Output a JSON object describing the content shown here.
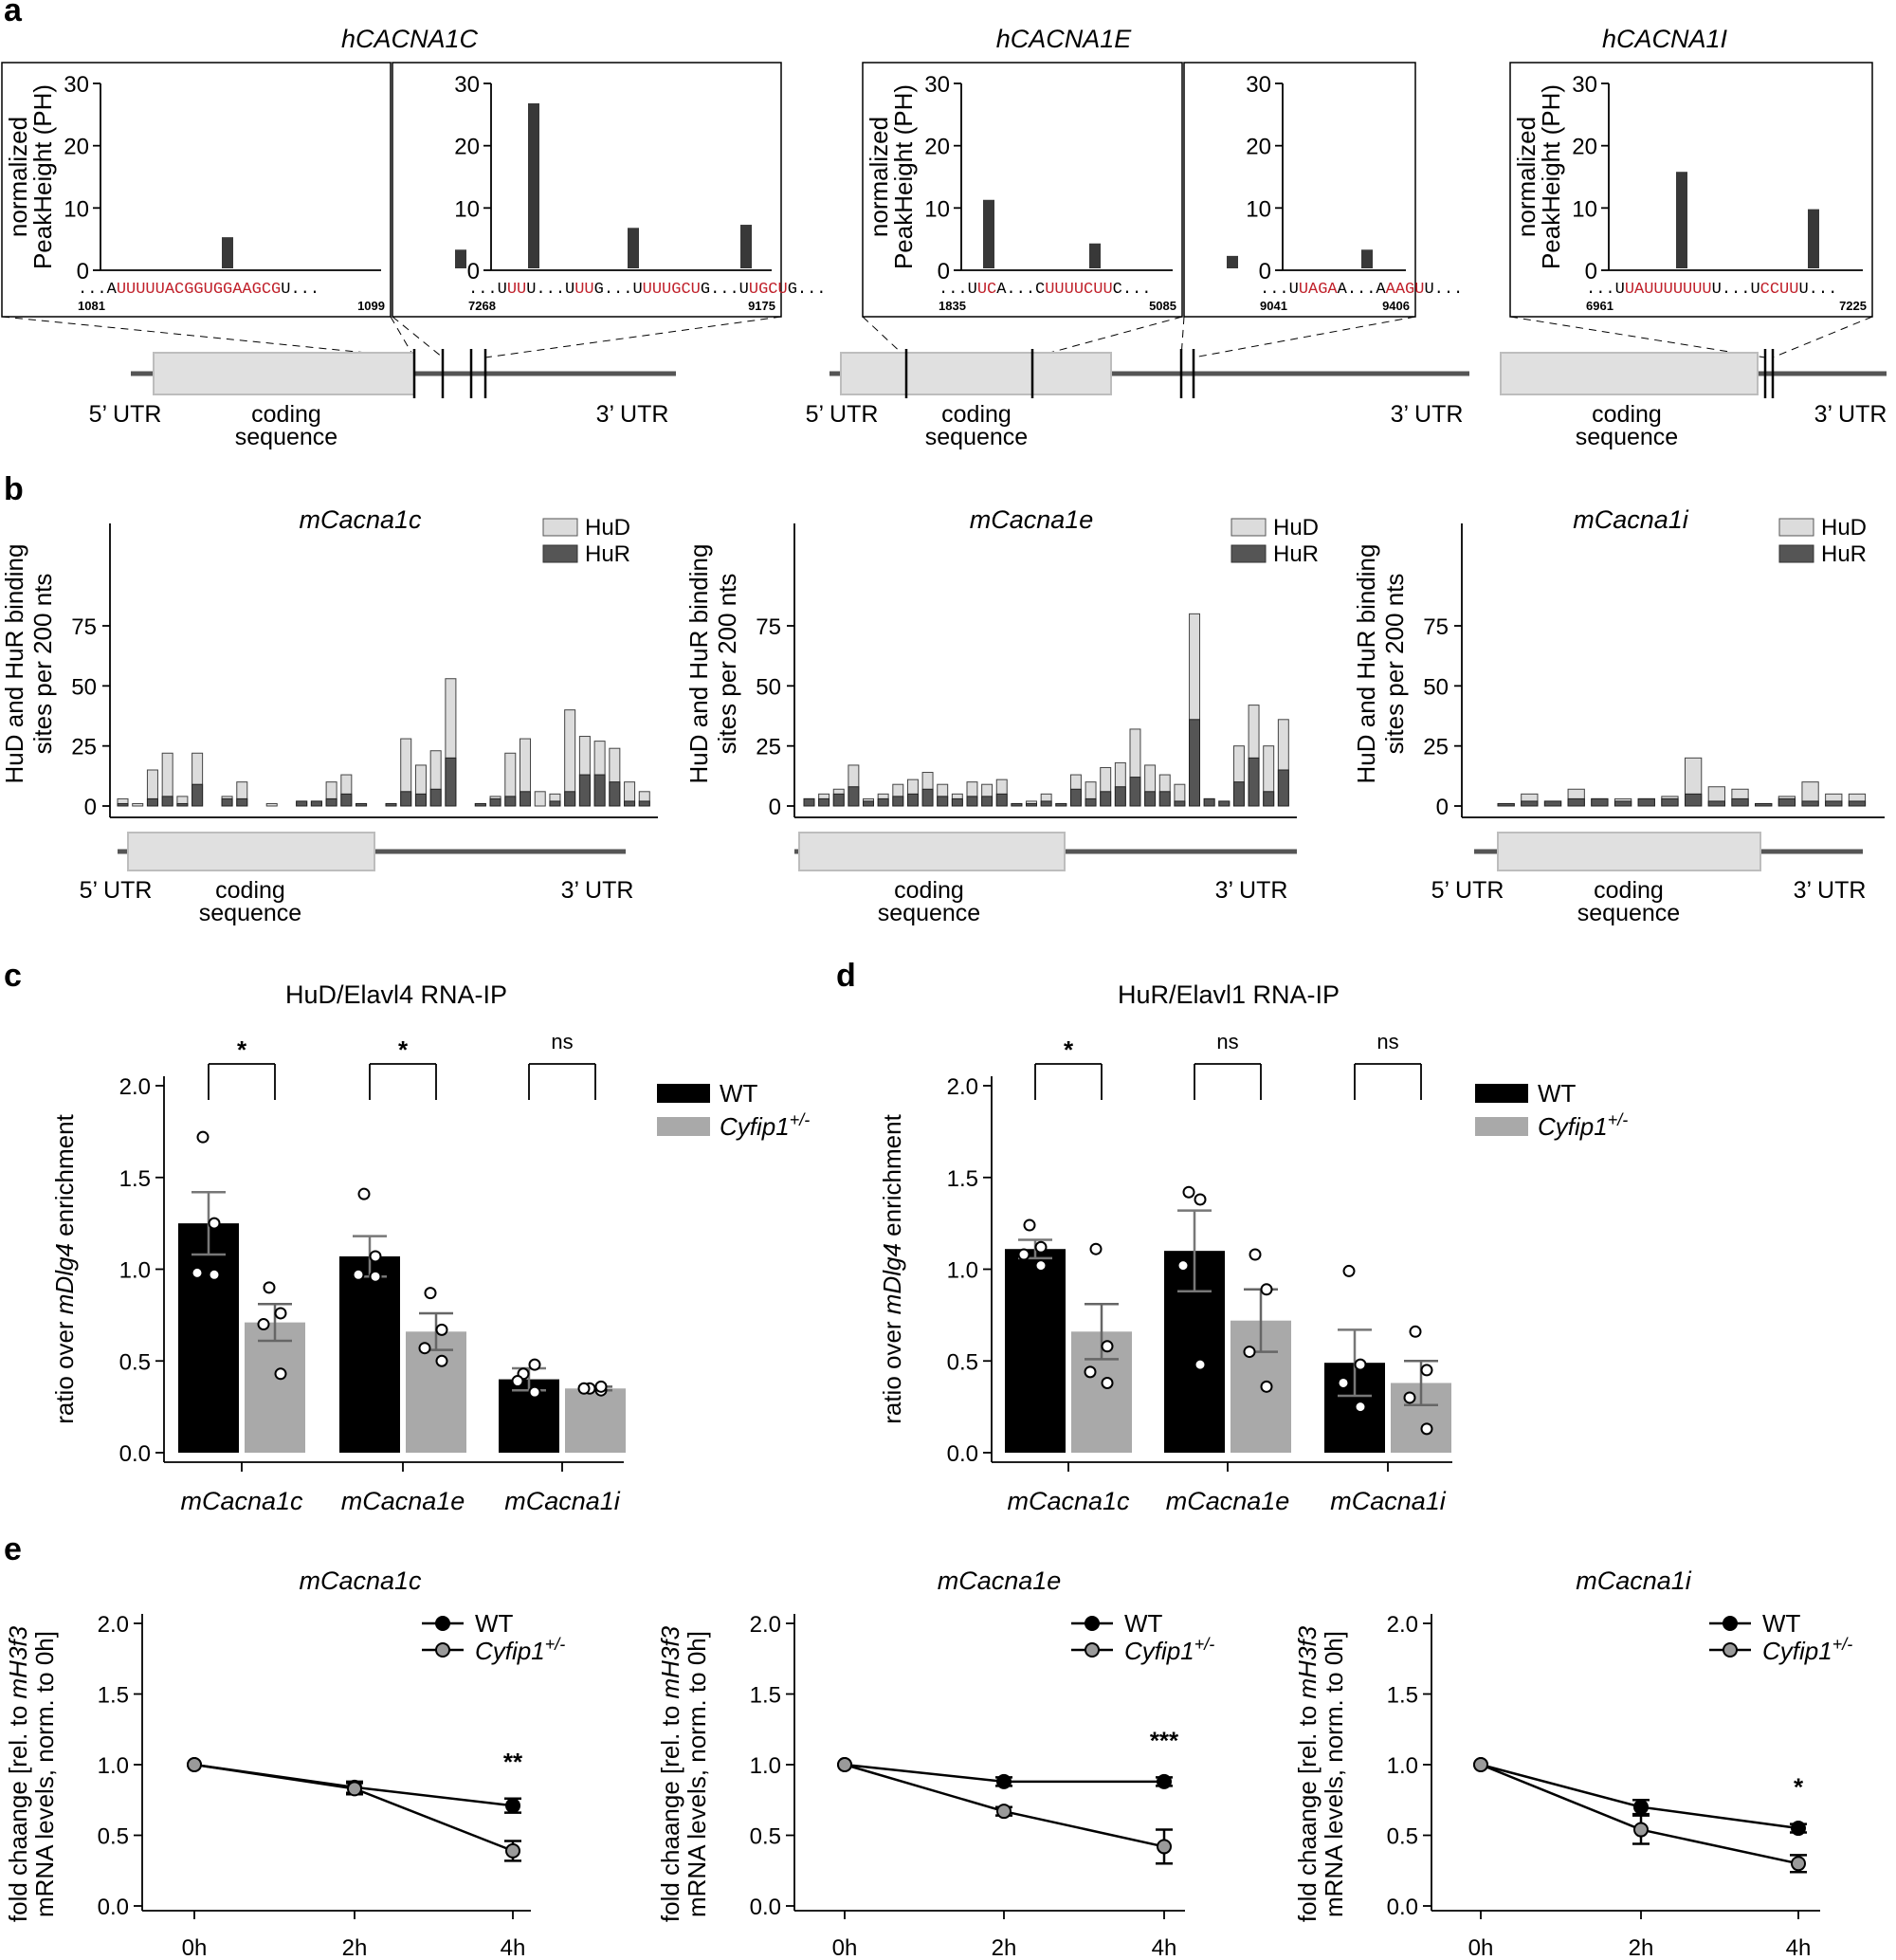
{
  "panel_labels": {
    "a": "a",
    "b": "b",
    "c": "c",
    "d": "d",
    "e": "e"
  },
  "gene_labels": {
    "utr5": "5’ UTR",
    "utr3": "3’ UTR",
    "coding1": "coding",
    "coding2": "sequence"
  },
  "colors": {
    "motif": "#c0202a",
    "peak": "#383838",
    "hud": "#dcdcdc",
    "hur": "#555555",
    "wt": "#000000",
    "het": "#a9a9a9",
    "gene_box": "#e0e0e0",
    "gene_line": "#555555"
  },
  "chart_data": [
    {
      "id": "panel-a",
      "type": "bar",
      "ylabel": [
        "normalized",
        "PeakHeight (PH)"
      ],
      "yticks": [
        0,
        10,
        20,
        30
      ],
      "ylim": [
        0,
        30
      ],
      "genes": [
        {
          "title": "hCACNA1C",
          "insets": [
            {
              "start": "1081",
              "end": "1099",
              "values": [
                5
              ],
              "seq": [
                [
                  "...A",
                  "k"
                ],
                [
                  "UUUUUACGGUGGAAGCG",
                  "r"
                ],
                [
                  "U...",
                  "k"
                ]
              ]
            },
            {
              "start": "7268",
              "end": "9175",
              "values": [
                3,
                26.5,
                6.5,
                7
              ],
              "seq": [
                [
                  "...U",
                  "k"
                ],
                [
                  "UU",
                  "r"
                ],
                [
                  "U...U",
                  "k"
                ],
                [
                  "UU",
                  "r"
                ],
                [
                  "G...U",
                  "k"
                ],
                [
                  "UUUGCU",
                  "r"
                ],
                [
                  "G...U",
                  "k"
                ],
                [
                  "UGCU",
                  "r"
                ],
                [
                  "G...",
                  "k"
                ]
              ]
            }
          ]
        },
        {
          "title": "hCACNA1E",
          "insets": [
            {
              "start": "1835",
              "end": "5085",
              "values": [
                11,
                4
              ],
              "seq": [
                [
                  "...U",
                  "k"
                ],
                [
                  "UC",
                  "r"
                ],
                [
                  "A...C",
                  "k"
                ],
                [
                  "UUUUCUU",
                  "r"
                ],
                [
                  "C...",
                  "k"
                ]
              ]
            },
            {
              "start": "9041",
              "end": "9406",
              "values": [
                2,
                3
              ],
              "seq": [
                [
                  "...U",
                  "k"
                ],
                [
                  "UAGA",
                  "r"
                ],
                [
                  "A...A",
                  "k"
                ],
                [
                  "AAGU",
                  "r"
                ],
                [
                  "U...",
                  "k"
                ]
              ]
            }
          ]
        },
        {
          "title": "hCACNA1I",
          "insets": [
            {
              "start": "6961",
              "end": "7225",
              "values": [
                15.5,
                9.5
              ],
              "seq": [
                [
                  "...U",
                  "k"
                ],
                [
                  "UAUUUUUUU",
                  "r"
                ],
                [
                  "U...U",
                  "k"
                ],
                [
                  "CCUU",
                  "r"
                ],
                [
                  "U...",
                  "k"
                ]
              ]
            }
          ]
        }
      ]
    },
    {
      "id": "panel-b",
      "type": "bar",
      "ylabel": [
        "HuD and HuR binding",
        "sites per 200 nts"
      ],
      "yticks": [
        0,
        25,
        50,
        75
      ],
      "ylim": [
        0,
        75
      ],
      "legend": [
        "HuD",
        "HuR"
      ],
      "genes": [
        {
          "title": "mCacna1c",
          "hud": [
            3,
            1,
            15,
            22,
            4,
            22,
            0,
            4,
            10,
            0,
            1,
            0,
            2,
            2,
            10,
            13,
            1,
            0,
            1,
            28,
            17,
            23,
            53,
            0,
            1,
            4,
            22,
            28,
            6,
            5,
            40,
            29,
            27,
            24,
            10,
            6
          ],
          "hur": [
            1,
            0,
            3,
            4,
            1,
            9,
            0,
            3,
            3,
            0,
            0,
            0,
            2,
            2,
            3,
            5,
            1,
            0,
            1,
            6,
            5,
            7,
            20,
            0,
            1,
            3,
            4,
            6,
            0,
            2,
            6,
            13,
            13,
            10,
            2,
            2
          ]
        },
        {
          "title": "mCacna1e",
          "hud": [
            3,
            5,
            7,
            17,
            3,
            5,
            9,
            11,
            14,
            9,
            5,
            10,
            9,
            11,
            1,
            2,
            5,
            1,
            13,
            10,
            16,
            18,
            32,
            17,
            13,
            9,
            80,
            3,
            2,
            25,
            42,
            25,
            36
          ],
          "hur": [
            3,
            3,
            5,
            8,
            2,
            3,
            4,
            5,
            7,
            4,
            3,
            4,
            4,
            5,
            1,
            1,
            2,
            1,
            7,
            3,
            6,
            8,
            12,
            6,
            6,
            2,
            36,
            3,
            2,
            10,
            20,
            6,
            15
          ]
        },
        {
          "title": "mCacna1i",
          "hud": [
            1,
            5,
            2,
            7,
            3,
            3,
            3,
            4,
            20,
            8,
            7,
            1,
            4,
            10,
            5,
            5
          ],
          "hur": [
            1,
            2,
            2,
            3,
            3,
            2,
            3,
            3,
            5,
            2,
            3,
            1,
            3,
            2,
            2,
            2
          ]
        }
      ]
    },
    {
      "id": "panel-c",
      "type": "bar",
      "title": "HuD/Elavl4 RNA-IP",
      "ylabel_parts": [
        "ratio over ",
        "mDlg4",
        " enrichment"
      ],
      "yticks": [
        "0.0",
        "0.5",
        "1.0",
        "1.5",
        "2.0"
      ],
      "ylim": [
        0,
        2.0
      ],
      "categories": [
        "mCacna1c",
        "mCacna1e",
        "mCacna1i"
      ],
      "series": [
        {
          "name": "WT",
          "values": [
            1.25,
            1.07,
            0.4
          ],
          "sem": [
            0.17,
            0.11,
            0.06
          ],
          "points": [
            [
              1.72,
              1.25,
              0.98,
              0.97
            ],
            [
              1.41,
              1.07,
              0.97,
              0.96
            ],
            [
              0.43,
              0.48,
              0.39,
              0.33
            ]
          ]
        },
        {
          "name": "Cyfip1+/-",
          "values": [
            0.71,
            0.66,
            0.35
          ],
          "sem": [
            0.1,
            0.1,
            0.01
          ],
          "points": [
            [
              0.9,
              0.76,
              0.7,
              0.43
            ],
            [
              0.87,
              0.67,
              0.57,
              0.5
            ],
            [
              0.35,
              0.34,
              0.35,
              0.36
            ]
          ]
        }
      ],
      "significance": [
        "*",
        "*",
        "ns"
      ],
      "legend": {
        "wt": "WT",
        "het_base": "Cyfip1",
        "het_sup": "+/-"
      }
    },
    {
      "id": "panel-d",
      "type": "bar",
      "title": "HuR/Elavl1 RNA-IP",
      "ylabel_parts": [
        "ratio over ",
        "mDlg4",
        " enrichment"
      ],
      "yticks": [
        "0.0",
        "0.5",
        "1.0",
        "1.5",
        "2.0"
      ],
      "ylim": [
        0,
        2.0
      ],
      "categories": [
        "mCacna1c",
        "mCacna1e",
        "mCacna1i"
      ],
      "series": [
        {
          "name": "WT",
          "values": [
            1.11,
            1.1,
            0.49
          ],
          "sem": [
            0.05,
            0.22,
            0.18
          ],
          "points": [
            [
              1.24,
              1.12,
              1.08,
              1.02
            ],
            [
              1.42,
              1.38,
              1.02,
              0.48
            ],
            [
              0.99,
              0.48,
              0.38,
              0.25
            ]
          ]
        },
        {
          "name": "Cyfip1+/-",
          "values": [
            0.66,
            0.72,
            0.38
          ],
          "sem": [
            0.15,
            0.17,
            0.12
          ],
          "points": [
            [
              1.11,
              0.58,
              0.44,
              0.38
            ],
            [
              1.08,
              0.89,
              0.55,
              0.36
            ],
            [
              0.66,
              0.45,
              0.3,
              0.13
            ]
          ]
        }
      ],
      "significance": [
        "*",
        "ns",
        "ns"
      ],
      "legend": {
        "wt": "WT",
        "het_base": "Cyfip1",
        "het_sup": "+/-"
      }
    },
    {
      "id": "panel-e",
      "type": "line",
      "ylabel_parts": [
        "fold chaange [rel. to ",
        "mH3f3",
        "",
        "mRNA levels, norm. to 0h]"
      ],
      "yticks": [
        "0.0",
        "0.5",
        "1.0",
        "1.5",
        "2.0"
      ],
      "ylim": [
        0,
        2.0
      ],
      "x": [
        "0h",
        "2h",
        "4h"
      ],
      "legend": {
        "wt": "WT",
        "het_base": "Cyfip1",
        "het_sup": "+/-"
      },
      "plots": [
        {
          "title": "mCacna1c",
          "series": [
            {
              "name": "WT",
              "values": [
                1.0,
                0.84,
                0.71
              ],
              "err": [
                0,
                0.04,
                0.05
              ]
            },
            {
              "name": "Cyfip1+/-",
              "values": [
                1.0,
                0.83,
                0.39
              ],
              "err": [
                0,
                0.04,
                0.07
              ]
            }
          ],
          "significance": "**"
        },
        {
          "title": "mCacna1e",
          "series": [
            {
              "name": "WT",
              "values": [
                1.0,
                0.88,
                0.88
              ],
              "err": [
                0,
                0.03,
                0.03
              ]
            },
            {
              "name": "Cyfip1+/-",
              "values": [
                1.0,
                0.67,
                0.42
              ],
              "err": [
                0,
                0.03,
                0.12
              ]
            }
          ],
          "significance": "***"
        },
        {
          "title": "mCacna1i",
          "series": [
            {
              "name": "WT",
              "values": [
                1.0,
                0.7,
                0.55
              ],
              "err": [
                0,
                0.05,
                0.03
              ]
            },
            {
              "name": "Cyfip1+/-",
              "values": [
                1.0,
                0.54,
                0.3
              ],
              "err": [
                0,
                0.1,
                0.06
              ]
            }
          ],
          "significance": "*"
        }
      ]
    }
  ]
}
